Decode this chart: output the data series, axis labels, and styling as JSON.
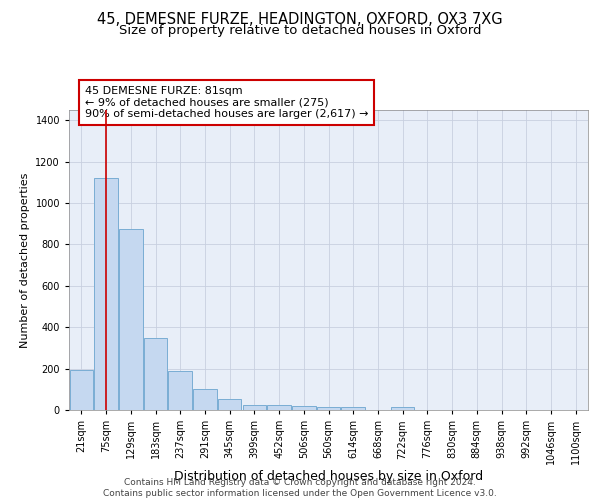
{
  "title": "45, DEMESNE FURZE, HEADINGTON, OXFORD, OX3 7XG",
  "subtitle": "Size of property relative to detached houses in Oxford",
  "xlabel": "Distribution of detached houses by size in Oxford",
  "ylabel": "Number of detached properties",
  "bar_color": "#c5d8f0",
  "bar_edge_color": "#7aadd4",
  "categories": [
    "21sqm",
    "75sqm",
    "129sqm",
    "183sqm",
    "237sqm",
    "291sqm",
    "345sqm",
    "399sqm",
    "452sqm",
    "506sqm",
    "560sqm",
    "614sqm",
    "668sqm",
    "722sqm",
    "776sqm",
    "830sqm",
    "884sqm",
    "938sqm",
    "992sqm",
    "1046sqm",
    "1100sqm"
  ],
  "bar_heights": [
    195,
    1120,
    875,
    350,
    190,
    100,
    52,
    22,
    22,
    18,
    15,
    15,
    0,
    15,
    0,
    0,
    0,
    0,
    0,
    0,
    0
  ],
  "ylim": [
    0,
    1450
  ],
  "vline_x_idx": 1,
  "vline_color": "#cc0000",
  "annotation_text": "45 DEMESNE FURZE: 81sqm\n← 9% of detached houses are smaller (275)\n90% of semi-detached houses are larger (2,617) →",
  "annotation_box_color": "#ffffff",
  "annotation_box_edge_color": "#cc0000",
  "footer": "Contains HM Land Registry data © Crown copyright and database right 2024.\nContains public sector information licensed under the Open Government Licence v3.0.",
  "background_color": "#e8eef8",
  "grid_color": "#c8cfe0",
  "title_fontsize": 10.5,
  "subtitle_fontsize": 9.5,
  "xlabel_fontsize": 9,
  "ylabel_fontsize": 8,
  "tick_fontsize": 7,
  "annotation_fontsize": 8,
  "footer_fontsize": 6.5
}
